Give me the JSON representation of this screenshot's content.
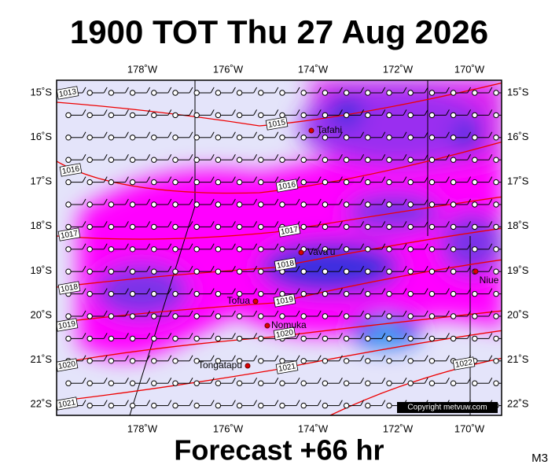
{
  "header": {
    "title": "1900 TOT Thu 27 Aug 2026"
  },
  "map": {
    "lon_labels": [
      "178˚W",
      "176˚W",
      "174˚W",
      "172˚W",
      "170˚W"
    ],
    "lat_labels": [
      "15˚S",
      "16˚S",
      "17˚S",
      "18˚S",
      "19˚S",
      "20˚S",
      "21˚S",
      "22˚S"
    ],
    "places": [
      "Tafahi",
      "Vava'u",
      "Niue",
      "Tofua",
      "Nomuka",
      "Tongatapu"
    ],
    "isobar_labels": [
      "1013",
      "1015",
      "1016",
      "1016",
      "1017",
      "1017",
      "1018",
      "1018",
      "1019",
      "1019",
      "1020",
      "1020",
      "1021",
      "1021",
      "1022"
    ],
    "copyright": "Copyright metvuw.com"
  },
  "footer": {
    "forecast": "Forecast +66 hr",
    "code": "M3"
  }
}
